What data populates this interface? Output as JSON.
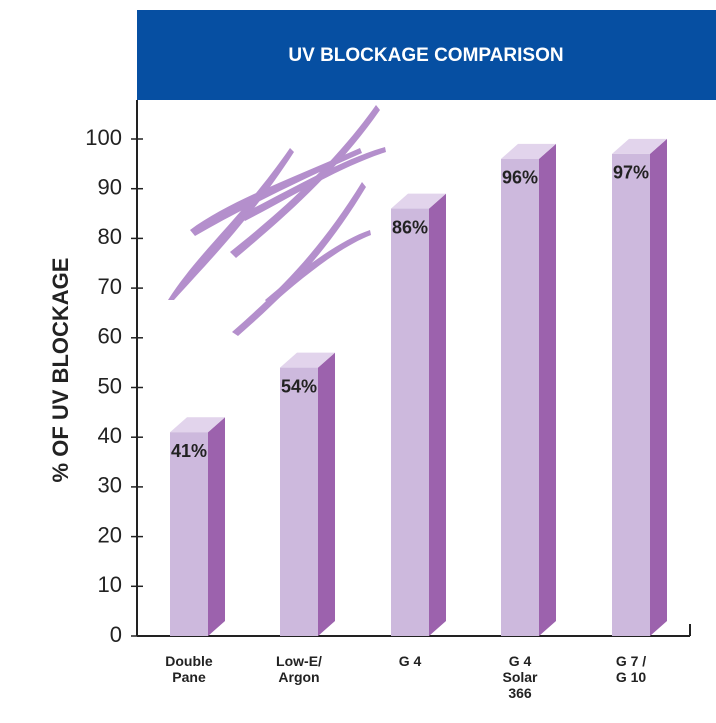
{
  "chart_data": {
    "type": "bar3d",
    "title": "UV BLOCKAGE COMPARISON",
    "y_label": "% OF UV BLOCKAGE",
    "categories": [
      [
        "Double",
        "Pane"
      ],
      [
        "Low-E/",
        "Argon"
      ],
      [
        "G 4"
      ],
      [
        "G 4",
        "Solar",
        "366"
      ],
      [
        "G 7 /",
        "G 10"
      ]
    ],
    "values": [
      41,
      54,
      86,
      96,
      97
    ],
    "value_labels": [
      "41%",
      "54%",
      "86%",
      "96%",
      "97%"
    ],
    "colors": {
      "front": "#cdb9dd",
      "side": "#9c62ad",
      "top": "#e2d4ec"
    },
    "header_color": "#064fa2",
    "ylim": [
      0,
      100
    ],
    "yticks": [
      0,
      10,
      20,
      30,
      40,
      50,
      60,
      70,
      80,
      90,
      100
    ]
  }
}
